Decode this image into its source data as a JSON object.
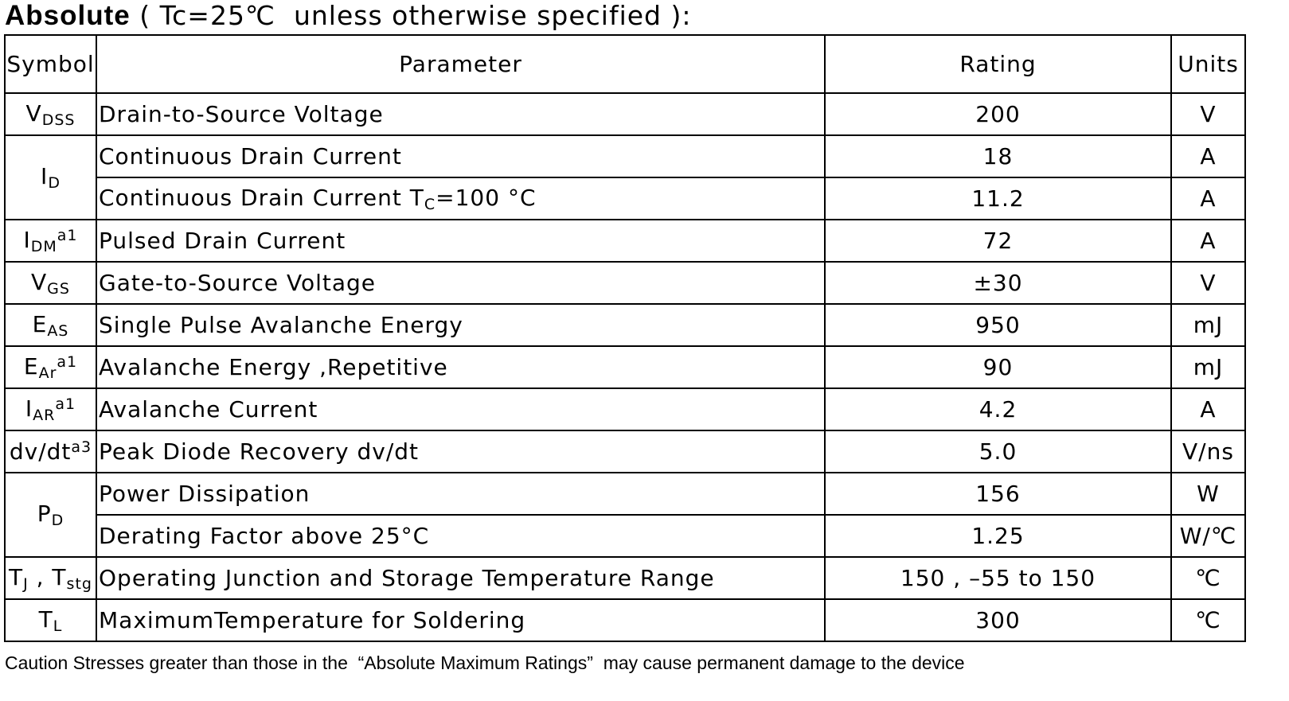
{
  "title": {
    "bold": "Absolute",
    "text": "( Tc=25℃  unless otherwise specified ):"
  },
  "table": {
    "header": [
      "Symbol",
      "Parameter",
      "Rating",
      "Units"
    ],
    "groups": [
      {
        "symbol": [
          {
            "text": "V"
          },
          {
            "sub": "DSS"
          }
        ],
        "items": [
          {
            "parameter": [
              {
                "text": "Drain-to-Source Voltage"
              }
            ],
            "rating": "200",
            "units": "V"
          }
        ]
      },
      {
        "symbol": [
          {
            "text": "I"
          },
          {
            "sub": "D"
          }
        ],
        "items": [
          {
            "parameter": [
              {
                "text": "Continuous Drain Current"
              }
            ],
            "rating": "18",
            "units": "A"
          },
          {
            "parameter": [
              {
                "text": "Continuous Drain Current T"
              },
              {
                "sub": "C"
              },
              {
                "text": "=100 °C"
              }
            ],
            "rating": "11.2",
            "units": "A"
          }
        ]
      },
      {
        "symbol": [
          {
            "text": "I"
          },
          {
            "sub": "DM"
          },
          {
            "sup": "a1"
          }
        ],
        "items": [
          {
            "parameter": [
              {
                "text": "Pulsed Drain Current"
              }
            ],
            "rating": "72",
            "units": "A"
          }
        ]
      },
      {
        "symbol": [
          {
            "text": "V"
          },
          {
            "sub": "GS"
          }
        ],
        "items": [
          {
            "parameter": [
              {
                "text": "Gate-to-Source Voltage"
              }
            ],
            "rating": "±30",
            "units": "V"
          }
        ]
      },
      {
        "symbol": [
          {
            "text": "E"
          },
          {
            "sub": "AS"
          }
        ],
        "items": [
          {
            "parameter": [
              {
                "text": "Single Pulse Avalanche Energy"
              }
            ],
            "rating": "950",
            "units": "mJ"
          }
        ]
      },
      {
        "symbol": [
          {
            "text": "E"
          },
          {
            "sub": "Ar"
          },
          {
            "sup": "a1"
          }
        ],
        "items": [
          {
            "parameter": [
              {
                "text": "Avalanche Energy ,Repetitive"
              }
            ],
            "rating": "90",
            "units": "mJ"
          }
        ]
      },
      {
        "symbol": [
          {
            "text": "I"
          },
          {
            "sub": "AR"
          },
          {
            "sup": "a1"
          }
        ],
        "items": [
          {
            "parameter": [
              {
                "text": "Avalanche Current"
              }
            ],
            "rating": "4.2",
            "units": "A"
          }
        ]
      },
      {
        "symbol": [
          {
            "text": "dv/dt"
          },
          {
            "sup": "a3"
          }
        ],
        "items": [
          {
            "parameter": [
              {
                "text": "Peak Diode Recovery dv/dt"
              }
            ],
            "rating": "5.0",
            "units": "V/ns"
          }
        ]
      },
      {
        "symbol": [
          {
            "text": "P"
          },
          {
            "sub": "D"
          }
        ],
        "items": [
          {
            "parameter": [
              {
                "text": "Power Dissipation"
              }
            ],
            "rating": "156",
            "units": "W"
          },
          {
            "parameter": [
              {
                "text": "Derating Factor above 25°C"
              }
            ],
            "rating": "1.25",
            "units": "W/℃"
          }
        ]
      },
      {
        "symbol": [
          {
            "text": "T"
          },
          {
            "sub": "J"
          },
          {
            "text": " , T"
          },
          {
            "sub": "stg"
          }
        ],
        "items": [
          {
            "parameter": [
              {
                "text": "Operating Junction and Storage Temperature Range"
              }
            ],
            "rating": "150 , –55 to 150",
            "units": "℃"
          }
        ]
      },
      {
        "symbol": [
          {
            "text": "T"
          },
          {
            "sub": "L"
          }
        ],
        "items": [
          {
            "parameter": [
              {
                "text": "MaximumTemperature for Soldering"
              }
            ],
            "rating": "300",
            "units": "℃"
          }
        ]
      }
    ]
  },
  "caution": "Caution Stresses greater than those in the  “Absolute Maximum Ratings”  may cause permanent damage to the device"
}
